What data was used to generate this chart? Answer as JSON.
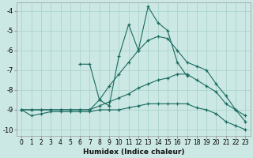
{
  "xlabel": "Humidex (Indice chaleur)",
  "bg_color": "#cce8e4",
  "grid_color": "#aad4cc",
  "line_color": "#1a6b60",
  "xlim": [
    -0.5,
    23.5
  ],
  "ylim": [
    -10.3,
    -3.6
  ],
  "yticks": [
    -10,
    -9,
    -8,
    -7,
    -6,
    -5,
    -4
  ],
  "xticks": [
    0,
    1,
    2,
    3,
    4,
    5,
    6,
    7,
    8,
    9,
    10,
    11,
    12,
    13,
    14,
    15,
    16,
    17,
    18,
    19,
    20,
    21,
    22,
    23
  ],
  "series1_x": [
    0,
    1,
    2,
    3,
    4,
    5,
    6,
    7,
    8,
    9,
    10,
    11,
    12,
    13,
    14,
    15,
    16,
    17,
    18,
    19,
    20,
    21,
    22,
    23
  ],
  "series1_y": [
    -9.0,
    -9.3,
    -9.2,
    -9.1,
    -9.1,
    -9.1,
    -9.1,
    -9.1,
    -9.0,
    -9.0,
    -9.0,
    -8.9,
    -8.8,
    -8.7,
    -8.7,
    -8.7,
    -8.7,
    -8.7,
    -8.9,
    -9.0,
    -9.2,
    -9.6,
    -9.8,
    -10.0
  ],
  "series2_x": [
    0,
    1,
    2,
    3,
    4,
    5,
    6,
    7,
    8,
    9,
    10,
    11,
    12,
    13,
    14,
    15,
    16,
    17,
    18,
    19,
    20,
    21,
    22,
    23
  ],
  "series2_y": [
    -9.0,
    -9.0,
    -9.0,
    -9.0,
    -9.0,
    -9.0,
    -9.0,
    -9.0,
    -8.8,
    -8.6,
    -8.4,
    -8.2,
    -7.9,
    -7.7,
    -7.5,
    -7.4,
    -7.2,
    -7.2,
    -7.5,
    -7.8,
    -8.1,
    -8.7,
    -9.0,
    -9.3
  ],
  "series3_x": [
    0,
    1,
    2,
    3,
    4,
    5,
    6,
    7,
    8,
    9,
    10,
    11,
    12,
    13,
    14,
    15,
    16,
    17,
    18,
    19,
    20,
    21,
    22,
    23
  ],
  "series3_y": [
    -9.0,
    -9.0,
    -9.0,
    -9.0,
    -9.0,
    -9.0,
    -9.0,
    -9.0,
    -8.5,
    -7.8,
    -7.2,
    -6.6,
    -6.0,
    -5.5,
    -5.3,
    -5.4,
    -6.0,
    -6.6,
    -6.8,
    -7.0,
    -7.7,
    -8.3,
    -9.0,
    -9.6
  ],
  "series4_x": [
    6,
    7,
    8,
    9,
    10,
    11,
    12,
    13,
    14,
    15,
    16,
    17
  ],
  "series4_y": [
    -6.7,
    -6.7,
    -8.5,
    -8.8,
    -6.3,
    -4.7,
    -6.0,
    -3.8,
    -4.6,
    -5.0,
    -6.6,
    -7.3
  ]
}
